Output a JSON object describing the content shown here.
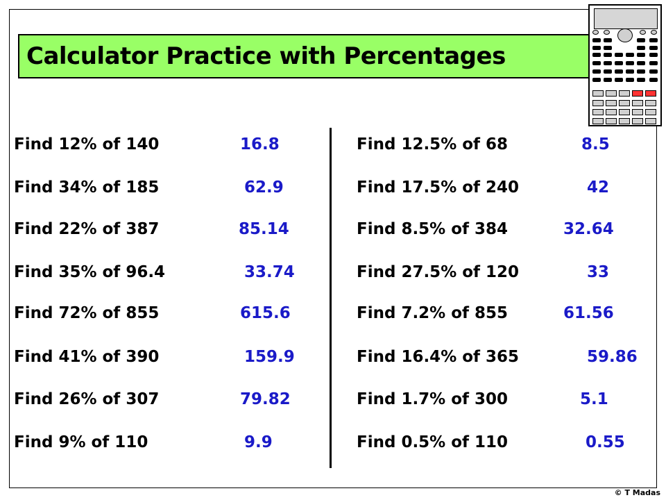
{
  "title": "Calculator Practice with Percentages",
  "left_column": [
    {
      "question": "Find 12% of 140",
      "answer": "16.8"
    },
    {
      "question": "Find 34% of 185",
      "answer": "62.9"
    },
    {
      "question": "Find 22% of 387",
      "answer": "85.14"
    },
    {
      "question": "Find 35% of 96.4",
      "answer": "33.74"
    },
    {
      "question": "Find 72% of 855",
      "answer": "615.6"
    },
    {
      "question": "Find 41% of 390",
      "answer": "159.9"
    },
    {
      "question": "Find 26% of 307",
      "answer": "79.82"
    },
    {
      "question": "Find 9% of 110",
      "answer": "9.9"
    }
  ],
  "right_column": [
    {
      "question": "Find 12.5% of 68",
      "answer": "8.5"
    },
    {
      "question": "Find 17.5% of 240",
      "answer": "42"
    },
    {
      "question": "Find 8.5% of 384",
      "answer": "32.64"
    },
    {
      "question": "Find 27.5% of 120",
      "answer": "33"
    },
    {
      "question": "Find 7.2% of 855",
      "answer": "61.56"
    },
    {
      "question": "Find 16.4% of 365",
      "answer": "59.86"
    },
    {
      "question": "Find 1.7% of 300",
      "answer": "5.1"
    },
    {
      "question": "Find 0.5% of 110",
      "answer": "0.55"
    }
  ],
  "copyright": "© T Madas",
  "colors": {
    "title_bg": "#99ff66",
    "answer": "#1a1ac8",
    "calc_red_key": "#ff3333"
  },
  "icon": "calculator-icon"
}
